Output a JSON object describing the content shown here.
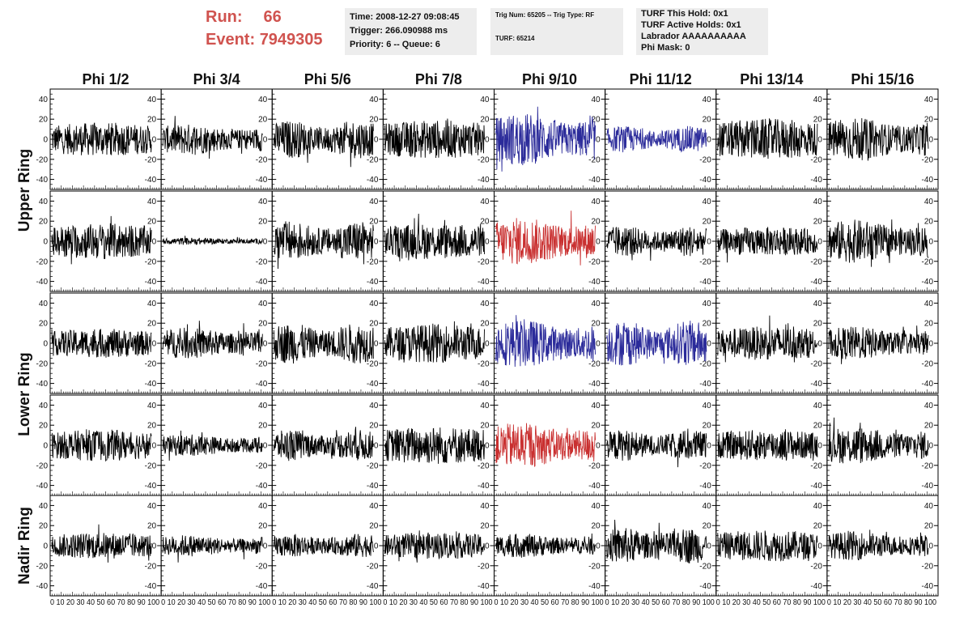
{
  "header": {
    "run_label": "Run:",
    "run_value": "66",
    "event_label": "Event:",
    "event_value": "7949305",
    "time_line": "Time: 2008-12-27 09:08:45",
    "trigger_line": "Trigger: 266.090988 ms",
    "priority_line": "Priority: 6 -- Queue: 6",
    "trig_line": "Trig Num: 65205 -- Trig Type: RF",
    "turf_line": "TURF: 65214",
    "turf_hold_line": "TURF This Hold: 0x1",
    "turf_active_line": "TURF Active Holds: 0x1",
    "labrador_line": "Labrador AAAAAAAAAA",
    "phi_mask_line": "Phi Mask: 0",
    "title_color": "#d0534f"
  },
  "chart_data": {
    "type": "line",
    "title": "",
    "columns": [
      "Phi 1/2",
      "Phi 3/4",
      "Phi 5/6",
      "Phi 7/8",
      "Phi 9/10",
      "Phi 11/12",
      "Phi 13/14",
      "Phi 15/16"
    ],
    "rows": [
      "Upper Ring",
      "Lower Ring",
      "Nadir Ring"
    ],
    "xlim": [
      0,
      100
    ],
    "ylim": [
      -50,
      50
    ],
    "yticks": [
      -40,
      -20,
      0,
      20,
      40
    ],
    "xticks": [
      0,
      10,
      20,
      30,
      40,
      50,
      60,
      70,
      80,
      90,
      100
    ],
    "x_tick_text": "0 10 20 30 40 50 60 70 80 90 100",
    "colors": {
      "default": "#000000",
      "blue": "#2b2b9a",
      "red": "#c93030"
    },
    "panels": [
      {
        "row": 0,
        "col": 0,
        "amp": 14,
        "color": "default"
      },
      {
        "row": 0,
        "col": 1,
        "amp": 13,
        "color": "default"
      },
      {
        "row": 0,
        "col": 2,
        "amp": 16,
        "color": "default"
      },
      {
        "row": 0,
        "col": 3,
        "amp": 16,
        "color": "default"
      },
      {
        "row": 0,
        "col": 4,
        "amp": 22,
        "color": "blue"
      },
      {
        "row": 0,
        "col": 5,
        "amp": 11,
        "color": "blue"
      },
      {
        "row": 0,
        "col": 6,
        "amp": 17,
        "color": "default"
      },
      {
        "row": 0,
        "col": 7,
        "amp": 18,
        "color": "default"
      },
      {
        "row": 1,
        "col": 0,
        "amp": 15,
        "color": "default"
      },
      {
        "row": 1,
        "col": 1,
        "amp": 3,
        "color": "default"
      },
      {
        "row": 1,
        "col": 2,
        "amp": 17,
        "color": "default"
      },
      {
        "row": 1,
        "col": 3,
        "amp": 15,
        "color": "default"
      },
      {
        "row": 1,
        "col": 4,
        "amp": 20,
        "color": "red"
      },
      {
        "row": 1,
        "col": 5,
        "amp": 13,
        "color": "default"
      },
      {
        "row": 1,
        "col": 6,
        "amp": 12,
        "color": "default"
      },
      {
        "row": 1,
        "col": 7,
        "amp": 18,
        "color": "default"
      },
      {
        "row": 2,
        "col": 0,
        "amp": 12,
        "color": "default"
      },
      {
        "row": 2,
        "col": 1,
        "amp": 13,
        "color": "default"
      },
      {
        "row": 2,
        "col": 2,
        "amp": 17,
        "color": "default"
      },
      {
        "row": 2,
        "col": 3,
        "amp": 16,
        "color": "default"
      },
      {
        "row": 2,
        "col": 4,
        "amp": 20,
        "color": "blue"
      },
      {
        "row": 2,
        "col": 5,
        "amp": 19,
        "color": "blue"
      },
      {
        "row": 2,
        "col": 6,
        "amp": 14,
        "color": "default"
      },
      {
        "row": 2,
        "col": 7,
        "amp": 14,
        "color": "default"
      },
      {
        "row": 3,
        "col": 0,
        "amp": 13,
        "color": "default"
      },
      {
        "row": 3,
        "col": 1,
        "amp": 9,
        "color": "default"
      },
      {
        "row": 3,
        "col": 2,
        "amp": 13,
        "color": "default"
      },
      {
        "row": 3,
        "col": 3,
        "amp": 16,
        "color": "default"
      },
      {
        "row": 3,
        "col": 4,
        "amp": 19,
        "color": "red"
      },
      {
        "row": 3,
        "col": 5,
        "amp": 13,
        "color": "default"
      },
      {
        "row": 3,
        "col": 6,
        "amp": 13,
        "color": "default"
      },
      {
        "row": 3,
        "col": 7,
        "amp": 16,
        "color": "default"
      },
      {
        "row": 4,
        "col": 0,
        "amp": 11,
        "color": "default"
      },
      {
        "row": 4,
        "col": 1,
        "amp": 9,
        "color": "default"
      },
      {
        "row": 4,
        "col": 2,
        "amp": 10,
        "color": "default"
      },
      {
        "row": 4,
        "col": 3,
        "amp": 11,
        "color": "default"
      },
      {
        "row": 4,
        "col": 4,
        "amp": 10,
        "color": "default"
      },
      {
        "row": 4,
        "col": 5,
        "amp": 15,
        "color": "default"
      },
      {
        "row": 4,
        "col": 6,
        "amp": 13,
        "color": "default"
      },
      {
        "row": 4,
        "col": 7,
        "amp": 12,
        "color": "default"
      }
    ]
  }
}
